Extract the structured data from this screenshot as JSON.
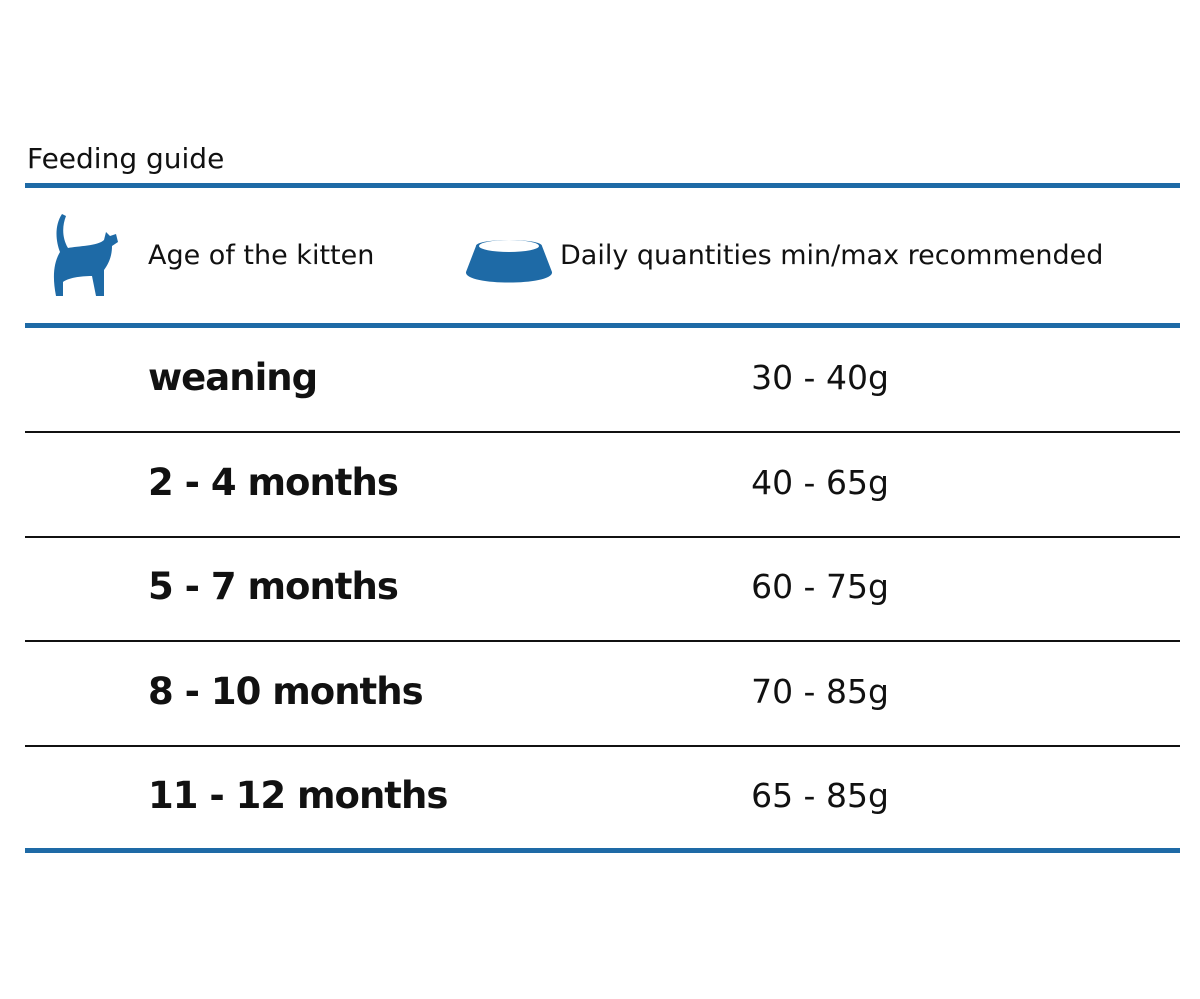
{
  "title": "Feeding guide",
  "table": {
    "header": [
      "Age of the kitten",
      "Daily quantities min/max recommended"
    ],
    "rows": [
      [
        "weaning",
        "30 - 40g"
      ],
      [
        "2 - 4 months",
        "40 - 65g"
      ],
      [
        "5 - 7 months",
        "60 - 75g"
      ],
      [
        "8 - 10 months",
        "70 - 85g"
      ],
      [
        "11 - 12 months",
        "65 - 85g"
      ]
    ]
  }
}
